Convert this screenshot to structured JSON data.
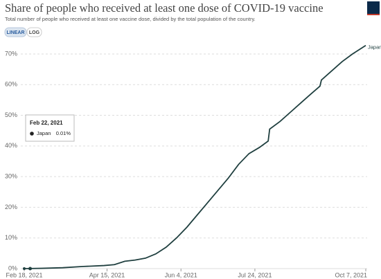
{
  "chart_data": {
    "type": "line",
    "title": "Share of people who received at least one dose of COVID-19 vaccine",
    "subtitle": "Total number of people who received at least one vaccine dose, divided by the total population of the country.",
    "controls": [
      "LINEAR",
      "LOG"
    ],
    "log_scale": false,
    "grid": true,
    "x": [
      "2021-02-18",
      "2021-03-02",
      "2021-03-16",
      "2021-03-30",
      "2021-04-13",
      "2021-04-20",
      "2021-04-27",
      "2021-05-04",
      "2021-05-11",
      "2021-05-18",
      "2021-05-25",
      "2021-06-01",
      "2021-06-08",
      "2021-06-15",
      "2021-06-22",
      "2021-06-29",
      "2021-07-06",
      "2021-07-13",
      "2021-07-20",
      "2021-07-27",
      "2021-08-02",
      "2021-08-03",
      "2021-08-10",
      "2021-08-17",
      "2021-08-24",
      "2021-08-31",
      "2021-09-06",
      "2021-09-07",
      "2021-09-14",
      "2021-09-21",
      "2021-09-28",
      "2021-10-07"
    ],
    "series": [
      {
        "name": "Japan",
        "color": "#1f3f3f",
        "values": [
          0,
          0.1,
          0.3,
          0.7,
          1.0,
          1.3,
          2.4,
          2.8,
          3.4,
          4.8,
          7.0,
          10.0,
          13.5,
          17.5,
          21.5,
          25.5,
          29.5,
          34,
          37.5,
          39.5,
          41.6,
          45.5,
          48,
          51,
          54,
          57,
          59.5,
          61.5,
          64.5,
          67.5,
          70,
          72.8
        ]
      }
    ],
    "xlim": [
      "2021-02-18",
      "2021-10-07"
    ],
    "xticks": [
      {
        "value": "2021-02-18",
        "label": "Feb 18, 2021"
      },
      {
        "value": "2021-04-15",
        "label": "Apr 15, 2021"
      },
      {
        "value": "2021-06-04",
        "label": "Jun 4, 2021"
      },
      {
        "value": "2021-07-24",
        "label": "Jul 24, 2021"
      },
      {
        "value": "2021-10-07",
        "label": "Oct 7, 2021"
      }
    ],
    "ylim": [
      0,
      73
    ],
    "yticks": [
      {
        "value": 0,
        "label": "0%"
      },
      {
        "value": 10,
        "label": "10%"
      },
      {
        "value": 20,
        "label": "20%"
      },
      {
        "value": 30,
        "label": "30%"
      },
      {
        "value": 40,
        "label": "40%"
      },
      {
        "value": 50,
        "label": "50%"
      },
      {
        "value": 60,
        "label": "60%"
      },
      {
        "value": 70,
        "label": "70%"
      }
    ],
    "tooltip": {
      "date": "Feb 22, 2021",
      "series": "Japan",
      "value": 0.01,
      "value_label": "0.01%"
    }
  }
}
